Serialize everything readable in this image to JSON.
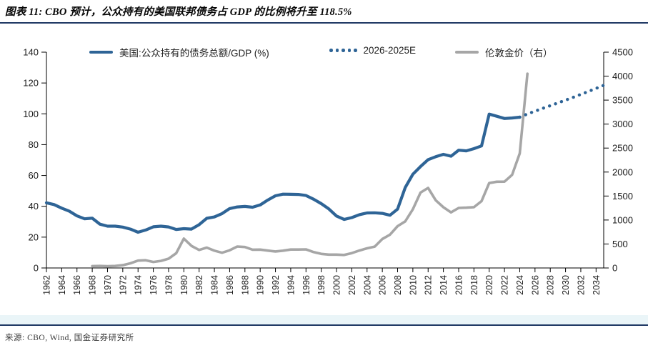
{
  "title": "图表 11: CBO 预计，公众持有的美国联邦债务占 GDP 的比例将升至 118.5%",
  "source": "来源: CBO, Wind, 国金证券研究所",
  "colors": {
    "accent_navy": "#1f3864",
    "line_blue": "#2e6496",
    "line_gray": "#a6a6a6",
    "footer_band": "#eaf5f8",
    "axis_black": "#000000"
  },
  "legend": [
    {
      "label": "美国:公众持有的债务总额/GDP (%)",
      "swatch": "solid-blue"
    },
    {
      "label": "2026-2025E",
      "swatch": "dotted-blue"
    },
    {
      "label": "伦敦金价（右）",
      "swatch": "solid-gray"
    }
  ],
  "chart_data": {
    "type": "line",
    "title": "CBO 预计，公众持有的美国联邦债务占 GDP 的比例将升至 118.5%",
    "x_domain": [
      1962,
      2035
    ],
    "x_ticks": [
      1962,
      1964,
      1966,
      1968,
      1970,
      1972,
      1974,
      1976,
      1978,
      1980,
      1982,
      1984,
      1986,
      1988,
      1990,
      1992,
      1994,
      1996,
      1998,
      2000,
      2002,
      2004,
      2006,
      2008,
      2010,
      2012,
      2014,
      2016,
      2018,
      2020,
      2022,
      2024,
      2026,
      2028,
      2030,
      2032,
      2034
    ],
    "left_axis": {
      "min": 0,
      "max": 140,
      "step": 20,
      "ticks": [
        0,
        20,
        40,
        60,
        80,
        100,
        120,
        140
      ]
    },
    "right_axis": {
      "min": 0,
      "max": 4500,
      "step": 500,
      "ticks": [
        0,
        500,
        1000,
        1500,
        2000,
        2500,
        3000,
        3500,
        4000,
        4500
      ]
    },
    "grid": false,
    "legend_position": "top",
    "series": [
      {
        "name": "美国:公众持有的债务总额/GDP (%)",
        "axis": "left",
        "style": "solid",
        "color": "#2e6496",
        "x_start": 1962,
        "values": [
          42.3,
          41.1,
          38.8,
          36.8,
          33.8,
          31.9,
          32.3,
          28.4,
          27.1,
          27.1,
          26.5,
          25.2,
          23.2,
          24.6,
          26.7,
          27.1,
          26.6,
          25.0,
          25.5,
          25.2,
          28.1,
          32.2,
          33.1,
          35.3,
          38.5,
          39.6,
          39.9,
          39.4,
          40.9,
          44.1,
          46.8,
          47.9,
          47.8,
          47.7,
          47.0,
          44.6,
          41.7,
          38.3,
          33.7,
          31.5,
          32.7,
          34.6,
          35.7,
          35.8,
          35.4,
          34.2,
          38.2,
          52.2,
          60.8,
          65.8,
          70.3,
          72.2,
          73.7,
          72.5,
          76.4,
          76.0,
          77.4,
          79.2,
          99.8,
          98.4,
          97.0,
          97.3,
          97.8
        ]
      },
      {
        "name": "2026-2025E",
        "axis": "left",
        "style": "dotted",
        "color": "#2e6496",
        "x_start": 2024,
        "values": [
          97.8,
          99.9,
          101.7,
          103.5,
          105.3,
          107.1,
          108.9,
          110.7,
          112.6,
          114.5,
          116.5,
          118.5
        ]
      },
      {
        "name": "伦敦金价（右）",
        "axis": "right",
        "style": "solid",
        "color": "#a6a6a6",
        "x_start": 1968,
        "values": [
          39,
          41,
          36,
          41,
          58,
          97,
          154,
          161,
          125,
          148,
          193,
          307,
          612,
          460,
          376,
          424,
          361,
          317,
          368,
          447,
          437,
          381,
          383,
          362,
          344,
          360,
          384,
          384,
          388,
          331,
          294,
          279,
          279,
          271,
          310,
          363,
          410,
          445,
          604,
          695,
          872,
          972,
          1225,
          1572,
          1669,
          1411,
          1266,
          1160,
          1251,
          1258,
          1268,
          1393,
          1770,
          1799,
          1800,
          1941,
          2390,
          4050
        ]
      }
    ]
  }
}
